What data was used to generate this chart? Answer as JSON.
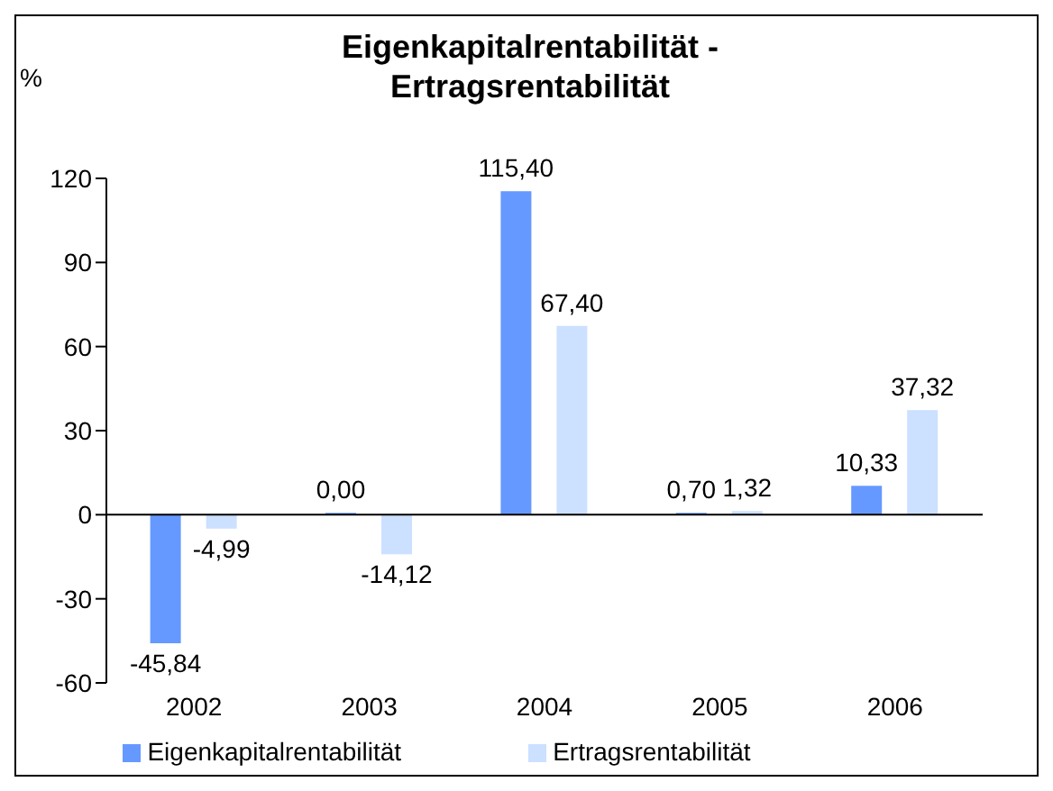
{
  "chart_data": {
    "type": "bar",
    "title": "Eigenkapitalrentabilität - Ertragsrentabilität",
    "ylabel": "%",
    "categories": [
      "2002",
      "2003",
      "2004",
      "2005",
      "2006"
    ],
    "series": [
      {
        "name": "Eigenkapitalrentabilität",
        "color": "#6699ff",
        "values": [
          -45.84,
          0.0,
          115.4,
          0.7,
          10.33
        ],
        "value_labels": [
          "-45,84",
          "0,00",
          "115,40",
          "0,70",
          "10,33"
        ]
      },
      {
        "name": "Ertragsrentabilität",
        "color": "#cce0ff",
        "values": [
          -4.99,
          -14.12,
          67.4,
          1.32,
          37.32
        ],
        "value_labels": [
          "-4,99",
          "-14,12",
          "67,40",
          "1,32",
          "37,32"
        ]
      }
    ],
    "ylim": [
      -60,
      120
    ],
    "yticks": [
      -60,
      -30,
      0,
      30,
      60,
      90,
      120
    ],
    "grid": false,
    "ref_lines": [
      {
        "axis": "y",
        "value": 0,
        "color": "#000000"
      }
    ],
    "legend": "bottom"
  }
}
